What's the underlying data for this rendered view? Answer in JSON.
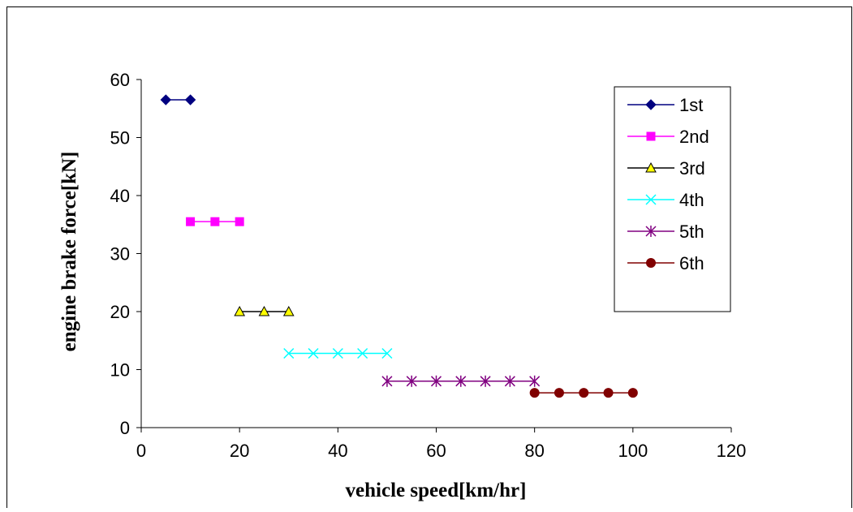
{
  "chart_data": {
    "type": "line",
    "title": "",
    "xlabel": "vehicle speed[km/hr]",
    "ylabel": "engine brake force[kN]",
    "xlim": [
      0,
      120
    ],
    "ylim": [
      0,
      60
    ],
    "xticks": [
      0,
      20,
      40,
      60,
      80,
      100,
      120
    ],
    "yticks": [
      0,
      10,
      20,
      30,
      40,
      50,
      60
    ],
    "grid": false,
    "legend_position": "right",
    "series": [
      {
        "name": "1st",
        "color": "#000080",
        "marker": "diamond",
        "x": [
          5,
          10
        ],
        "y": [
          56.5,
          56.5
        ]
      },
      {
        "name": "2nd",
        "color": "#FF00FF",
        "marker": "square",
        "x": [
          10,
          15,
          20
        ],
        "y": [
          35.5,
          35.5,
          35.5
        ]
      },
      {
        "name": "3rd",
        "color": "#000000",
        "fill": "#FFFF00",
        "marker": "triangle",
        "x": [
          20,
          25,
          30
        ],
        "y": [
          20,
          20,
          20
        ]
      },
      {
        "name": "4th",
        "color": "#00FFFF",
        "marker": "x",
        "x": [
          30,
          35,
          40,
          45,
          50
        ],
        "y": [
          12.8,
          12.8,
          12.8,
          12.8,
          12.8
        ]
      },
      {
        "name": "5th",
        "color": "#800080",
        "marker": "star",
        "x": [
          50,
          55,
          60,
          65,
          70,
          75,
          80
        ],
        "y": [
          8,
          8,
          8,
          8,
          8,
          8,
          8
        ]
      },
      {
        "name": "6th",
        "color": "#800000",
        "marker": "circle",
        "x": [
          80,
          85,
          90,
          95,
          100
        ],
        "y": [
          6,
          6,
          6,
          6,
          6
        ]
      }
    ]
  }
}
